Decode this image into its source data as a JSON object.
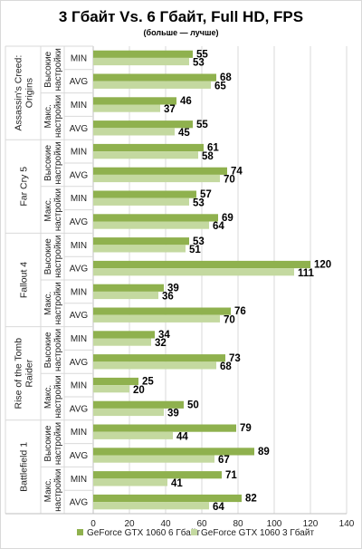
{
  "chart_data": {
    "type": "bar",
    "orientation": "horizontal",
    "title": "3 Гбайт Vs. 6 Гбайт, Full HD, FPS",
    "subtitle": "(больше — лучше)",
    "xlim": [
      0,
      140
    ],
    "xticks": [
      0,
      20,
      40,
      60,
      80,
      100,
      120,
      140
    ],
    "grid": true,
    "legend_position": "bottom",
    "colors": {
      "gtx1060_6gb": "#8fb14e",
      "gtx1060_3gb": "#c4d9a0"
    },
    "series": [
      {
        "name": "GeForce GTX 1060 6 Гбайт",
        "key": "gtx1060_6gb"
      },
      {
        "name": "GeForce GTX 1060 3 Гбайт",
        "key": "gtx1060_3gb"
      }
    ],
    "games": [
      {
        "name": "Assassin's Creed: Origins",
        "settings": [
          {
            "name": "Высокие настройки",
            "rows": [
              {
                "metric": "MIN",
                "values": [
                  55,
                  53
                ]
              },
              {
                "metric": "AVG",
                "values": [
                  68,
                  65
                ]
              }
            ]
          },
          {
            "name": "Макс. настройки",
            "rows": [
              {
                "metric": "MIN",
                "values": [
                  46,
                  37
                ]
              },
              {
                "metric": "AVG",
                "values": [
                  55,
                  45
                ]
              }
            ]
          }
        ]
      },
      {
        "name": "Far Cry 5",
        "settings": [
          {
            "name": "Высокие настройки",
            "rows": [
              {
                "metric": "MIN",
                "values": [
                  61,
                  58
                ]
              },
              {
                "metric": "AVG",
                "values": [
                  74,
                  70
                ]
              }
            ]
          },
          {
            "name": "Макс. настройки",
            "rows": [
              {
                "metric": "MIN",
                "values": [
                  57,
                  53
                ]
              },
              {
                "metric": "AVG",
                "values": [
                  69,
                  64
                ]
              }
            ]
          }
        ]
      },
      {
        "name": "Fallout 4",
        "settings": [
          {
            "name": "Высокие настройки",
            "rows": [
              {
                "metric": "MIN",
                "values": [
                  53,
                  51
                ]
              },
              {
                "metric": "AVG",
                "values": [
                  120,
                  111
                ]
              }
            ]
          },
          {
            "name": "Макс. настройки",
            "rows": [
              {
                "metric": "MIN",
                "values": [
                  39,
                  36
                ]
              },
              {
                "metric": "AVG",
                "values": [
                  76,
                  70
                ]
              }
            ]
          }
        ]
      },
      {
        "name": "Rise of the Tomb Raider",
        "settings": [
          {
            "name": "Высокие настройки",
            "rows": [
              {
                "metric": "MIN",
                "values": [
                  34,
                  32
                ]
              },
              {
                "metric": "AVG",
                "values": [
                  73,
                  68
                ]
              }
            ]
          },
          {
            "name": "Макс. настройки",
            "rows": [
              {
                "metric": "MIN",
                "values": [
                  25,
                  20
                ]
              },
              {
                "metric": "AVG",
                "values": [
                  50,
                  39
                ]
              }
            ]
          }
        ]
      },
      {
        "name": "Battlefield 1",
        "settings": [
          {
            "name": "Высокие настройки",
            "rows": [
              {
                "metric": "MIN",
                "values": [
                  79,
                  44
                ]
              },
              {
                "metric": "AVG",
                "values": [
                  89,
                  67
                ]
              }
            ]
          },
          {
            "name": "Макс. настройки",
            "rows": [
              {
                "metric": "MIN",
                "values": [
                  71,
                  41
                ]
              },
              {
                "metric": "AVG",
                "values": [
                  82,
                  64
                ]
              }
            ]
          }
        ]
      }
    ]
  }
}
